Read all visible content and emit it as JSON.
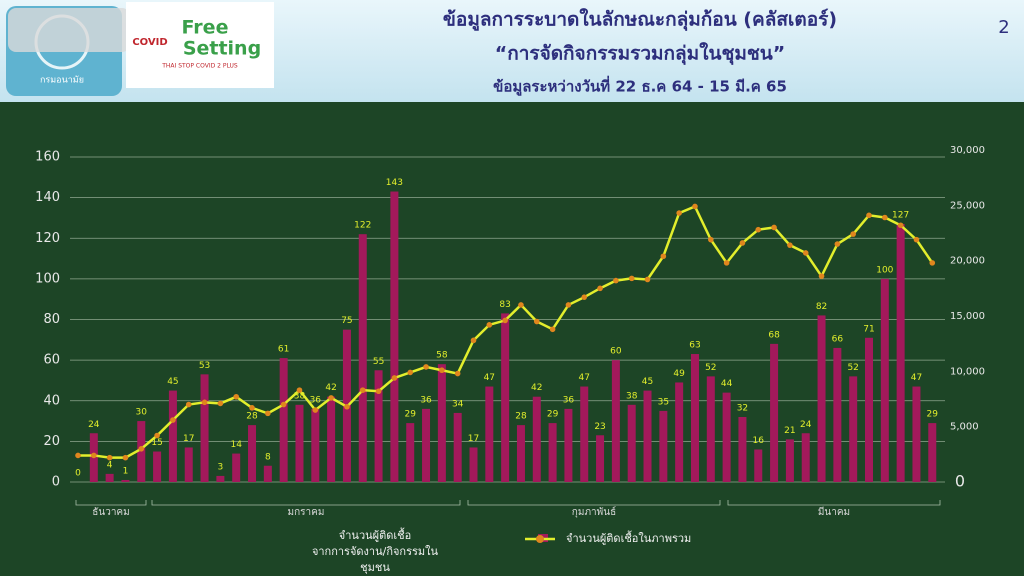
{
  "header": {
    "title": "ข้อมูลการระบาดในลักษณะกลุ่มก้อน (คลัสเตอร์)",
    "subtitle": "“การจัดกิจกรรมรวมกลุ่มในชุมชน”",
    "date_range": "ข้อมูลระหว่างวันที่ 22 ธ.ค 64 - 15 มี.ค 65",
    "page_number": "2",
    "logo_left": "กรมอนามัย",
    "logo_right_word1": "Free",
    "logo_right_word2": "Setting",
    "logo_right_covid": "COVID",
    "logo_right_tagline": "THAI STOP COVID 2 PLUS"
  },
  "chart_data": {
    "type": "bar-line",
    "months": [
      "ธันวาคม",
      "มกราคม",
      "กุมภาพันธ์",
      "มีนาคม"
    ],
    "ylim": [
      0,
      160
    ],
    "yticks": [
      0,
      20,
      40,
      60,
      80,
      100,
      120,
      140,
      160
    ],
    "y2lim": [
      0,
      30000
    ],
    "y2ticks": [
      0,
      {
        "value": 5000,
        "label": "5,000"
      },
      {
        "value": 10000,
        "label": "10,000"
      },
      {
        "value": 15000,
        "label": "15,000"
      },
      {
        "value": 20000,
        "label": "20,000"
      },
      {
        "value": 25000,
        "label": "25,000"
      },
      {
        "value": 30000,
        "label": "30,000"
      }
    ],
    "grid": true,
    "series": [
      {
        "name": "จำนวนผู้ติดเชื้อ\nจากการจัดงาน/กิจกรรมในชุมชน",
        "type": "bar",
        "color": "#a3195b",
        "values": [
          0,
          24,
          4,
          1,
          30,
          15,
          45,
          17,
          53,
          3,
          14,
          28,
          8,
          61,
          38,
          36,
          42,
          75,
          122,
          55,
          143,
          29,
          36,
          58,
          34,
          17,
          47,
          83,
          28,
          42,
          29,
          36,
          47,
          23,
          60,
          38,
          45,
          35,
          49,
          63,
          52,
          44,
          32,
          16,
          68,
          21,
          24,
          82,
          66,
          52,
          71,
          100,
          127,
          47,
          29
        ]
      },
      {
        "name": "จำนวนผู้ติดเชื้อในภาพรวม",
        "type": "line",
        "axis": "y2",
        "color": "#e2ee2c",
        "marker_color": "#e0861e",
        "values": [
          2400,
          2400,
          2200,
          2200,
          3000,
          4200,
          5600,
          7000,
          7200,
          7100,
          7700,
          6700,
          6200,
          7000,
          8300,
          6500,
          7600,
          6800,
          8300,
          8200,
          9400,
          9900,
          10400,
          10100,
          9800,
          12800,
          14200,
          14600,
          16000,
          14500,
          13800,
          16000,
          16700,
          17500,
          18200,
          18400,
          18300,
          20400,
          24300,
          24900,
          21900,
          19800,
          21600,
          22800,
          23000,
          21400,
          20700,
          18600,
          21500,
          22400,
          24100,
          23900,
          23200,
          21900,
          19800
        ]
      }
    ]
  }
}
